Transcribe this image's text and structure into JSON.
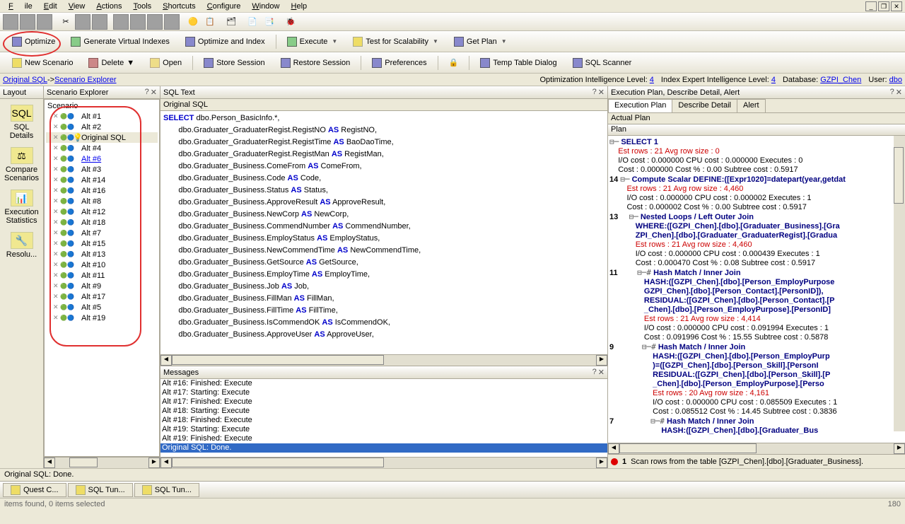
{
  "menu": {
    "file": "File",
    "edit": "Edit",
    "view": "View",
    "actions": "Actions",
    "tools": "Tools",
    "shortcuts": "Shortcuts",
    "configure": "Configure",
    "window": "Window",
    "help": "Help"
  },
  "toolbar2": {
    "optimize": "Optimize",
    "genvi": "Generate Virtual Indexes",
    "optidx": "Optimize and Index",
    "execute": "Execute",
    "testscal": "Test for Scalability",
    "getplan": "Get Plan"
  },
  "toolbar3": {
    "newscenario": "New Scenario",
    "delete": "Delete",
    "open": "Open",
    "storesession": "Store Session",
    "restoresession": "Restore Session",
    "preferences": "Preferences",
    "temptable": "Temp Table Dialog",
    "sqlscanner": "SQL Scanner"
  },
  "linkbar": {
    "leftLinks": [
      "Original SQL",
      "Scenario Explorer"
    ],
    "optIntel": "Optimization Intelligence Level:",
    "optIntelVal": "4",
    "idxIntel": "Index Expert Intelligence Level:",
    "idxIntelVal": "4",
    "db": "Database:",
    "dbVal": "GZPI_Chen",
    "user": "User:",
    "userVal": "dbo"
  },
  "layout": {
    "title": "Layout",
    "items": [
      {
        "label": "SQL Details",
        "icon": "SQL"
      },
      {
        "label": "Compare Scenarios",
        "icon": "⚖"
      },
      {
        "label": "Execution Statistics",
        "icon": "📊"
      },
      {
        "label": "Resolu...",
        "icon": "🔧"
      }
    ]
  },
  "scenario": {
    "title": "Scenario Explorer",
    "root": "Scenario",
    "items": [
      {
        "label": "Alt #1"
      },
      {
        "label": "Alt #2"
      },
      {
        "label": "Original SQL",
        "selected": true,
        "bulb": true
      },
      {
        "label": "Alt #4"
      },
      {
        "label": "Alt #6",
        "link": true
      },
      {
        "label": "Alt #3"
      },
      {
        "label": "Alt #14"
      },
      {
        "label": "Alt #16"
      },
      {
        "label": "Alt #8"
      },
      {
        "label": "Alt #12"
      },
      {
        "label": "Alt #18"
      },
      {
        "label": "Alt #7"
      },
      {
        "label": "Alt #15"
      },
      {
        "label": "Alt #13"
      },
      {
        "label": "Alt #10"
      },
      {
        "label": "Alt #11"
      },
      {
        "label": "Alt #9"
      },
      {
        "label": "Alt #17"
      },
      {
        "label": "Alt #5"
      },
      {
        "label": "Alt #19"
      }
    ]
  },
  "sqltext": {
    "title": "SQL Text",
    "subtitle": "Original SQL",
    "lines": [
      [
        "SELECT",
        " dbo.Person_BasicInfo.*,"
      ],
      [
        "",
        "       dbo.Graduater_GraduaterRegist.RegistNO ",
        "AS",
        " RegistNO,"
      ],
      [
        "",
        "       dbo.Graduater_GraduaterRegist.RegistTime ",
        "AS",
        " BaoDaoTime,"
      ],
      [
        "",
        "       dbo.Graduater_GraduaterRegist.RegistMan ",
        "AS",
        " RegistMan,"
      ],
      [
        "",
        "       dbo.Graduater_Business.ComeFrom ",
        "AS",
        " ComeFrom,"
      ],
      [
        "",
        "       dbo.Graduater_Business.Code ",
        "AS",
        " Code,"
      ],
      [
        "",
        "       dbo.Graduater_Business.Status ",
        "AS",
        " Status,"
      ],
      [
        "",
        "       dbo.Graduater_Business.ApproveResult ",
        "AS",
        " ApproveResult,"
      ],
      [
        "",
        "       dbo.Graduater_Business.NewCorp ",
        "AS",
        " NewCorp,"
      ],
      [
        "",
        "       dbo.Graduater_Business.CommendNumber ",
        "AS",
        " CommendNumber,"
      ],
      [
        "",
        "       dbo.Graduater_Business.EmployStatus ",
        "AS",
        " EmployStatus,"
      ],
      [
        "",
        "       dbo.Graduater_Business.NewCommendTime ",
        "AS",
        " NewCommendTime,"
      ],
      [
        "",
        "       dbo.Graduater_Business.GetSource ",
        "AS",
        " GetSource,"
      ],
      [
        "",
        "       dbo.Graduater_Business.EmployTime ",
        "AS",
        " EmployTime,"
      ],
      [
        "",
        "       dbo.Graduater_Business.Job ",
        "AS",
        " Job,"
      ],
      [
        "",
        "       dbo.Graduater_Business.FillMan ",
        "AS",
        " FillMan,"
      ],
      [
        "",
        "       dbo.Graduater_Business.FillTime ",
        "AS",
        " FillTime,"
      ],
      [
        "",
        "       dbo.Graduater_Business.IsCommendOK ",
        "AS",
        " IsCommendOK,"
      ],
      [
        "",
        "       dbo.Graduater_Business.ApproveUser ",
        "AS",
        " ApproveUser,"
      ]
    ]
  },
  "messages": {
    "title": "Messages",
    "items": [
      "Alt #16: Finished: Execute",
      "Alt #17: Starting: Execute",
      "Alt #17: Finished: Execute",
      "Alt #18: Starting: Execute",
      "Alt #18: Finished: Execute",
      "Alt #19: Starting: Execute",
      "Alt #19: Finished: Execute",
      "Original SQL: Done."
    ],
    "selectedIndex": 7
  },
  "plan": {
    "title": "Execution Plan, Describe Detail, Alert",
    "tabs": [
      "Execution Plan",
      "Describe Detail",
      "Alert"
    ],
    "activeTab": 0,
    "subtitle": "Actual Plan",
    "colheader": "Plan",
    "rows": [
      {
        "indent": 0,
        "exp": "⊟─",
        "b": "SELECT 1"
      },
      {
        "indent": 1,
        "r": "Est rows : 21 Avg row size : 0"
      },
      {
        "indent": 1,
        "text": "I/O cost : 0.000000 CPU cost : 0.000000 Executes : 0"
      },
      {
        "indent": 1,
        "text": "Cost : 0.000000 Cost % : 0.00 Subtree cost : 0.5917"
      },
      {
        "indent": 0,
        "num": "14 ",
        "exp": "⊟─",
        "b": "Compute Scalar DEFINE:([Expr1020]=datepart(year,getdat"
      },
      {
        "indent": 2,
        "r": "Est rows : 21 Avg row size : 4,460"
      },
      {
        "indent": 2,
        "text": "I/O cost : 0.000000 CPU cost : 0.000002 Executes : 1"
      },
      {
        "indent": 2,
        "text": "Cost : 0.000002 Cost % : 0.00 Subtree cost : 0.5917"
      },
      {
        "indent": 1,
        "num": "13 ",
        "exp": "⊟─",
        "b": "Nested Loops / Left Outer Join"
      },
      {
        "indent": 3,
        "b": "WHERE:([GZPI_Chen].[dbo].[Graduater_Business].[Gra"
      },
      {
        "indent": 3,
        "b": "ZPI_Chen].[dbo].[Graduater_GraduaterRegist].[Gradua"
      },
      {
        "indent": 3,
        "r": "Est rows : 21 Avg row size : 4,460"
      },
      {
        "indent": 3,
        "text": "I/O cost : 0.000000 CPU cost : 0.000439 Executes : 1"
      },
      {
        "indent": 3,
        "text": "Cost : 0.000470 Cost % : 0.08 Subtree cost : 0.5917"
      },
      {
        "indent": 2,
        "num": "11 ",
        "exp": "⊟─#",
        "b": "Hash Match / Inner Join"
      },
      {
        "indent": 4,
        "b": "HASH:([GZPI_Chen].[dbo].[Person_EmployPurpose"
      },
      {
        "indent": 4,
        "b": "GZPI_Chen].[dbo].[Person_Contact].[PersonID]),"
      },
      {
        "indent": 4,
        "b": "RESIDUAL:([GZPI_Chen].[dbo].[Person_Contact].[P"
      },
      {
        "indent": 4,
        "b": "_Chen].[dbo].[Person_EmployPurpose].[PersonID]"
      },
      {
        "indent": 4,
        "r": "Est rows : 21 Avg row size : 4,414"
      },
      {
        "indent": 4,
        "text": "I/O cost : 0.000000 CPU cost : 0.091994 Executes : 1"
      },
      {
        "indent": 4,
        "text": "Cost : 0.091996 Cost % : 15.55 Subtree cost : 0.5878"
      },
      {
        "indent": 3,
        "num": "9 ",
        "exp": "⊟─#",
        "b": "Hash Match / Inner Join"
      },
      {
        "indent": 5,
        "b": "HASH:([GZPI_Chen].[dbo].[Person_EmployPurp"
      },
      {
        "indent": 5,
        "b": ")=([GZPI_Chen].[dbo].[Person_Skill].[PersonI"
      },
      {
        "indent": 5,
        "b": "RESIDUAL:([GZPI_Chen].[dbo].[Person_Skill].[P"
      },
      {
        "indent": 5,
        "b": "_Chen].[dbo].[Person_EmployPurpose].[Perso"
      },
      {
        "indent": 5,
        "r": "Est rows : 20 Avg row size : 4,161"
      },
      {
        "indent": 5,
        "text": "I/O cost : 0.000000 CPU cost : 0.085509 Executes : 1"
      },
      {
        "indent": 5,
        "text": "Cost : 0.085512 Cost % : 14.45 Subtree cost : 0.3836"
      },
      {
        "indent": 4,
        "num": "7 ",
        "exp": "⊟─#",
        "b": "Hash Match / Inner Join"
      },
      {
        "indent": 6,
        "b": "HASH:([GZPI_Chen].[dbo].[Graduater_Bus"
      }
    ],
    "statusNum": "1",
    "statusText": "Scan rows from the table [GZPI_Chen].[dbo].[Graduater_Business]."
  },
  "status": "Original SQL: Done.",
  "taskbar": [
    "Quest C...",
    "SQL Tun...",
    "SQL Tun..."
  ],
  "bottomLeft": "items found, 0 items selected",
  "bottomRight": "180"
}
